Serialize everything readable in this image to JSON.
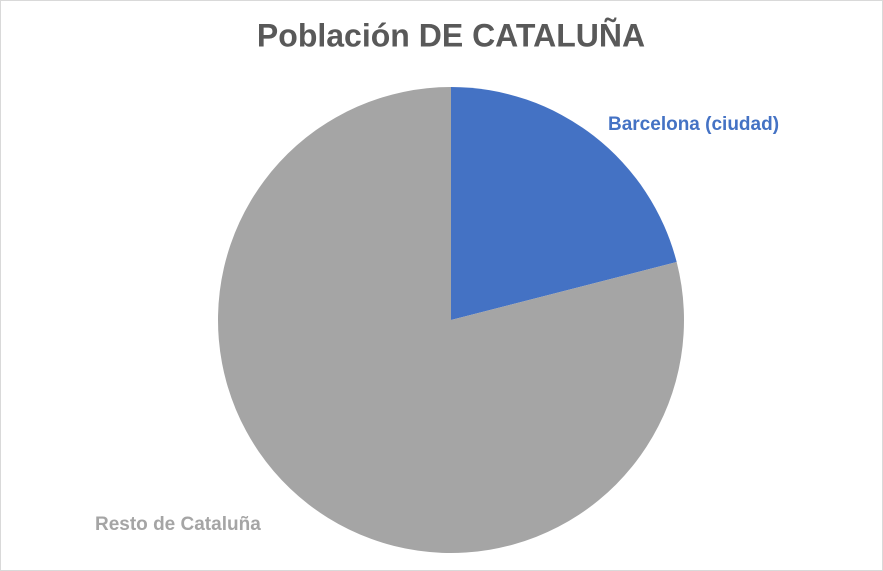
{
  "chart_data": {
    "type": "pie",
    "title": "Población DE CATALUÑA",
    "categories": [
      "Barcelona (ciudad)",
      "Resto de Cataluña"
    ],
    "values": [
      21,
      79
    ],
    "colors": [
      "#4472c4",
      "#a5a5a5"
    ]
  }
}
